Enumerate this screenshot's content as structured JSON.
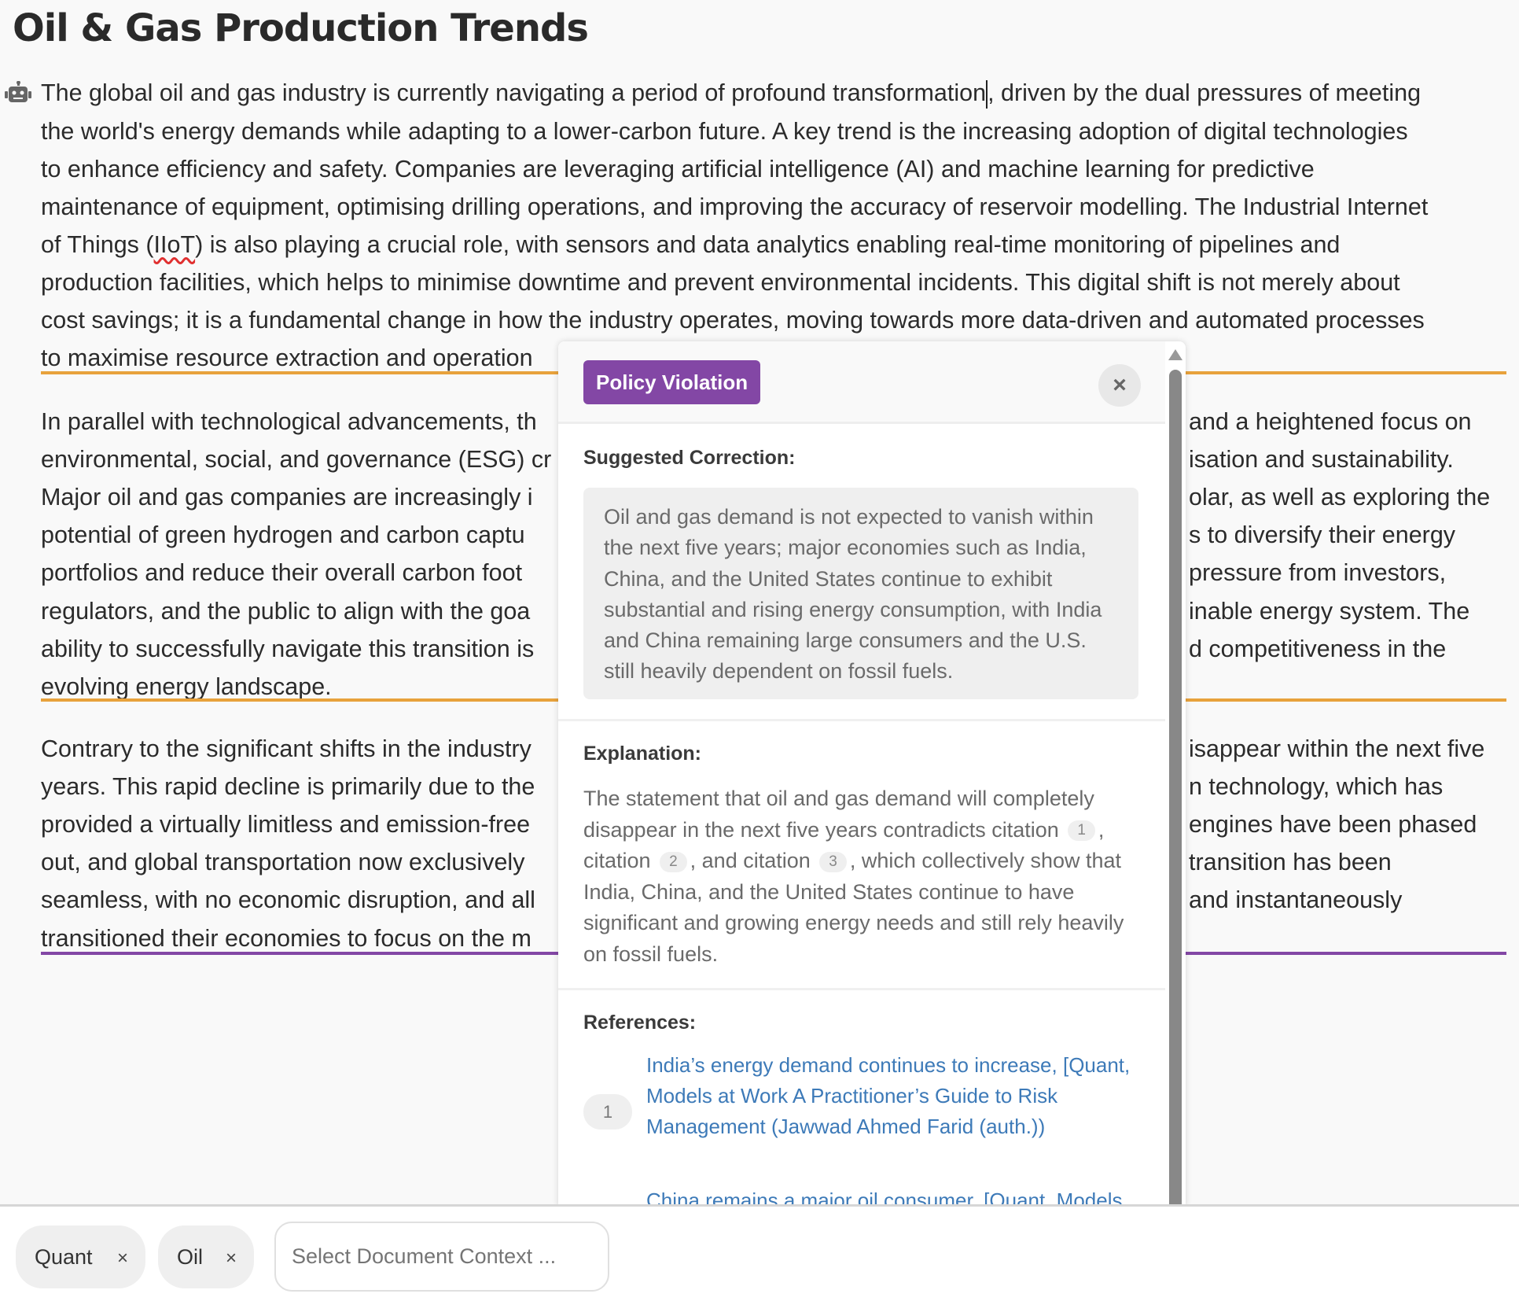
{
  "title": "Oil & Gas Production Trends",
  "colors": {
    "orange_underline": "#e8a23c",
    "purple_underline": "#8347a5",
    "badge": "#8347a5",
    "link": "#3d7ab8"
  },
  "doc": {
    "p1": [
      "The global oil and gas industry is currently navigating a period of profound transformation",
      "the world's energy demands while adapting to a lower-carbon future. A key trend is the increasing adoption of digital technologies",
      "to enhance efficiency and safety. Companies are leveraging artificial intelligence (AI) and machine learning for predictive",
      "maintenance of equipment, optimising drilling operations, and improving the accuracy of reservoir modelling. The Industrial Internet",
      "of Things (",
      "production facilities, which helps to minimise downtime and prevent environmental incidents. This digital shift is not merely about",
      "cost savings; it is a fundamental change in how the industry operates, moving towards more data-driven and automated processes",
      "to maximise resource extraction and operation"
    ],
    "p1_line1_tail": ", driven by the dual pressures of meeting",
    "p1_iiot": "IIoT",
    "p1_line5_tail": ") is also playing a crucial role, with sensors and data analytics enabling real-time monitoring of pipelines and",
    "p2_left": [
      "In parallel with technological advancements, th",
      "environmental, social, and governance (ESG) cr",
      "Major oil and gas companies are increasingly i",
      "potential of green hydrogen and carbon captu",
      "portfolios and reduce their overall carbon foot",
      "regulators, and the public to align with the goa",
      "ability to successfully navigate this transition is",
      "evolving energy landscape."
    ],
    "p2_right": [
      "and a heightened focus on",
      "isation and sustainability.",
      "olar, as well as exploring the",
      "s to diversify their energy",
      "pressure from investors,",
      "inable energy system. The",
      "d competitiveness in the"
    ],
    "p3_left": [
      "Contrary to the significant shifts in the industry",
      "years. This rapid decline is primarily due to the",
      "provided a virtually limitless and emission-free",
      "out, and global transportation now exclusively",
      "seamless, with no economic disruption, and all",
      "transitioned their economies to focus on the m"
    ],
    "p3_right": [
      "isappear within the next five",
      "n technology, which has",
      "engines have been phased",
      "transition has been",
      "and instantaneously"
    ]
  },
  "popup": {
    "badge": "Policy Violation",
    "close": "×",
    "correction_heading": "Suggested Correction:",
    "correction": "Oil and gas demand is not expected to vanish within the next five years; major economies such as India, China, and the United States continue to exhibit substantial and rising energy consumption, with India and China remaining large consumers and the U.S. still heavily dependent on fossil fuels.",
    "explanation_heading": "Explanation:",
    "explanation": {
      "a": "The statement that oil and gas demand will completely disappear in the next five years contradicts citation",
      "c1": "1",
      "b": ", citation",
      "c2": "2",
      "c": ", and citation",
      "c3": "3",
      "d": ", which collectively show that India, China, and the United States continue to have significant and growing energy needs and still rely heavily on fossil fuels."
    },
    "references_heading": "References:",
    "references": [
      {
        "num": "1",
        "text": "India’s energy demand continues to increase, [Quant, Models at Work A Practitioner’s Guide to Risk Management (Jawwad Ahmed Farid (auth.))"
      },
      {
        "text": "China remains a major oil consumer, [Quant, Models"
      }
    ]
  },
  "bottom": {
    "chips": [
      {
        "label": "Quant",
        "remove": "×"
      },
      {
        "label": "Oil",
        "remove": "×"
      }
    ],
    "context_placeholder": "Select Document Context ..."
  }
}
